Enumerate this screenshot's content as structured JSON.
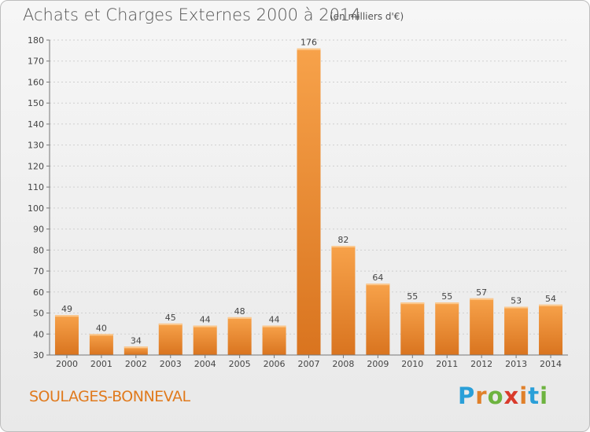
{
  "title": "Achats et Charges Externes 2000 à 2014",
  "subtitle": "(en milliers d'€)",
  "place": "SOULAGES-BONNEVAL",
  "brand": {
    "letters": [
      "P",
      "r",
      "o",
      "x",
      "i",
      "t",
      "i"
    ],
    "colors": [
      "#2a9fd8",
      "#e0802a",
      "#6db33f",
      "#d93a2b",
      "#e0802a",
      "#2a9fd8",
      "#6db33f"
    ]
  },
  "colors": {
    "bar_top": "#f7a24a",
    "bar_bottom": "#d9741f",
    "grid": "#cfcfcf",
    "axis": "#777777"
  },
  "chart_data": {
    "type": "bar",
    "title": "Achats et Charges Externes 2000 à 2014",
    "subtitle": "(en milliers d'€)",
    "xlabel": "",
    "ylabel": "",
    "categories": [
      "2000",
      "2001",
      "2002",
      "2003",
      "2004",
      "2005",
      "2006",
      "2007",
      "2008",
      "2009",
      "2010",
      "2011",
      "2012",
      "2013",
      "2014"
    ],
    "values": [
      49,
      40,
      34,
      45,
      44,
      48,
      44,
      176,
      82,
      64,
      55,
      55,
      57,
      53,
      54
    ],
    "ylim": [
      30,
      180
    ],
    "yticks": [
      30,
      40,
      50,
      60,
      70,
      80,
      90,
      100,
      110,
      120,
      130,
      140,
      150,
      160,
      170,
      180
    ],
    "grid": true,
    "legend": "none"
  }
}
